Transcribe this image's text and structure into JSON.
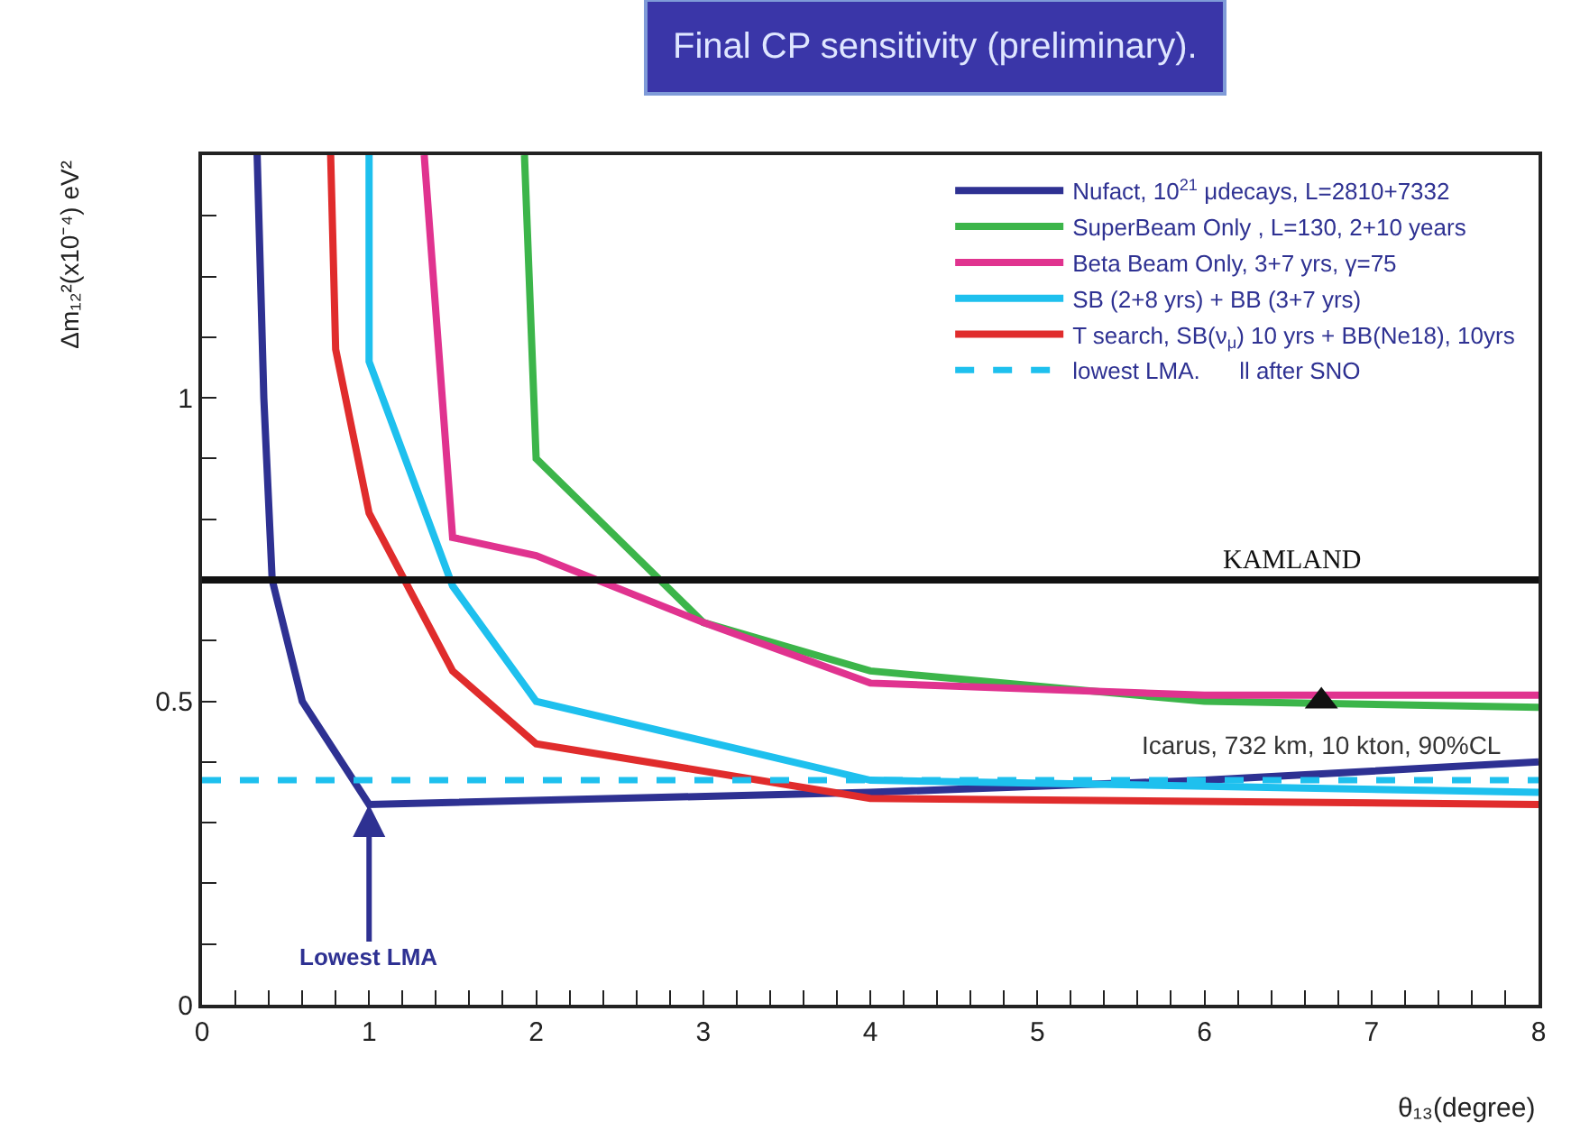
{
  "chart_data": {
    "type": "line",
    "title": "Final CP sensitivity (preliminary).",
    "xlabel": "θ₁₃(degree)",
    "ylabel": "Δm₁₂²(x10⁻⁴) eV²",
    "xlim": [
      0,
      8
    ],
    "ylim": [
      0,
      1.4
    ],
    "xticks": [
      0,
      {
        "value": 0.2,
        "label": null
      },
      {
        "value": 0.4,
        "label": null
      },
      {
        "value": 0.6,
        "label": null
      },
      {
        "value": 0.8,
        "label": null
      },
      1,
      {
        "value": 1.2,
        "label": null
      },
      {
        "value": 1.4,
        "label": null
      },
      {
        "value": 1.6,
        "label": null
      },
      {
        "value": 1.8,
        "label": null
      },
      2,
      {
        "value": 2.2,
        "label": null
      },
      {
        "value": 2.4,
        "label": null
      },
      {
        "value": 2.6,
        "label": null
      },
      {
        "value": 2.8,
        "label": null
      },
      3,
      {
        "value": 3.2,
        "label": null
      },
      {
        "value": 3.4,
        "label": null
      },
      {
        "value": 3.6,
        "label": null
      },
      {
        "value": 3.8,
        "label": null
      },
      4,
      {
        "value": 4.2,
        "label": null
      },
      {
        "value": 4.4,
        "label": null
      },
      {
        "value": 4.6,
        "label": null
      },
      {
        "value": 4.8,
        "label": null
      },
      5,
      {
        "value": 5.2,
        "label": null
      },
      {
        "value": 5.4,
        "label": null
      },
      {
        "value": 5.6,
        "label": null
      },
      {
        "value": 5.8,
        "label": null
      },
      6,
      {
        "value": 6.2,
        "label": null
      },
      {
        "value": 6.4,
        "label": null
      },
      {
        "value": 6.6,
        "label": null
      },
      {
        "value": 6.8,
        "label": null
      },
      7,
      {
        "value": 7.2,
        "label": null
      },
      {
        "value": 7.4,
        "label": null
      },
      {
        "value": 7.6,
        "label": null
      },
      {
        "value": 7.8,
        "label": null
      },
      8
    ],
    "yticks": [
      0,
      {
        "value": 0.1,
        "label": null
      },
      {
        "value": 0.2,
        "label": null
      },
      {
        "value": 0.3,
        "label": null
      },
      {
        "value": 0.4,
        "label": null
      },
      0.5,
      {
        "value": 0.6,
        "label": null
      },
      {
        "value": 0.7,
        "label": null
      },
      {
        "value": 0.8,
        "label": null
      },
      {
        "value": 0.9,
        "label": null
      },
      1,
      {
        "value": 1.1,
        "label": null
      },
      {
        "value": 1.2,
        "label": null
      },
      {
        "value": 1.3,
        "label": null
      }
    ],
    "legend": "top right",
    "line_style": "solid",
    "series": [
      {
        "name": "Nufact, 10$^{21}$ μdecays, L=2810+7332",
        "color": "#2e3192",
        "x": [
          0.33,
          0.37,
          0.42,
          0.6,
          1.0,
          4.0,
          6.0,
          8.0
        ],
        "values": [
          1.4,
          1.0,
          0.7,
          0.5,
          0.33,
          0.35,
          0.37,
          0.4
        ]
      },
      {
        "name": "SuperBeam Only , L=130, 2+10 years",
        "color": "#3cb54a",
        "x": [
          1.93,
          2.0,
          3.0,
          4.0,
          6.0,
          8.0
        ],
        "values": [
          1.4,
          0.9,
          0.63,
          0.55,
          0.5,
          0.49
        ]
      },
      {
        "name": "Beta Beam Only, 3+7 yrs, γ=75",
        "color": "#e0338f",
        "x": [
          1.33,
          1.5,
          2.0,
          3.0,
          4.0,
          6.0,
          8.0
        ],
        "values": [
          1.4,
          0.77,
          0.74,
          0.63,
          0.53,
          0.51,
          0.51
        ]
      },
      {
        "name": "SB (2+8 yrs) + BB (3+7 yrs)",
        "color": "#1ec0ee",
        "x": [
          1.0,
          1.0,
          1.5,
          2.0,
          4.0,
          8.0
        ],
        "values": [
          1.4,
          1.06,
          0.69,
          0.5,
          0.37,
          0.35
        ]
      },
      {
        "name": "T search, SB(ν$_{μ}$) 10 yrs + BB(Ne18), 10yrs",
        "color": "#e02c2c",
        "x": [
          0.77,
          0.8,
          1.0,
          1.5,
          2.0,
          4.0,
          8.0
        ],
        "values": [
          1.4,
          1.08,
          0.81,
          0.55,
          0.43,
          0.34,
          0.33
        ]
      },
      {
        "name": "lowest LMA.      ll after SNO",
        "color": "#1ec0ee",
        "line_style": "dashed",
        "x": [
          0,
          8
        ],
        "values": [
          0.37,
          0.37
        ]
      },
      {
        "type": "scatter",
        "color": "#111111",
        "marker": "triangle",
        "x": [
          6.7
        ],
        "values": [
          0.5
        ]
      }
    ],
    "ref_lines": [
      {
        "axis": "y",
        "value": 0.7,
        "label": "KAMLAND",
        "color": "#111111"
      }
    ],
    "annotations": [
      {
        "text": "Icarus, 732 km, 10 kton, 90%CL",
        "x": 6.7,
        "y": 0.5
      },
      {
        "text": "Lowest LMA",
        "x": 1.0,
        "y": 0.33
      }
    ]
  }
}
